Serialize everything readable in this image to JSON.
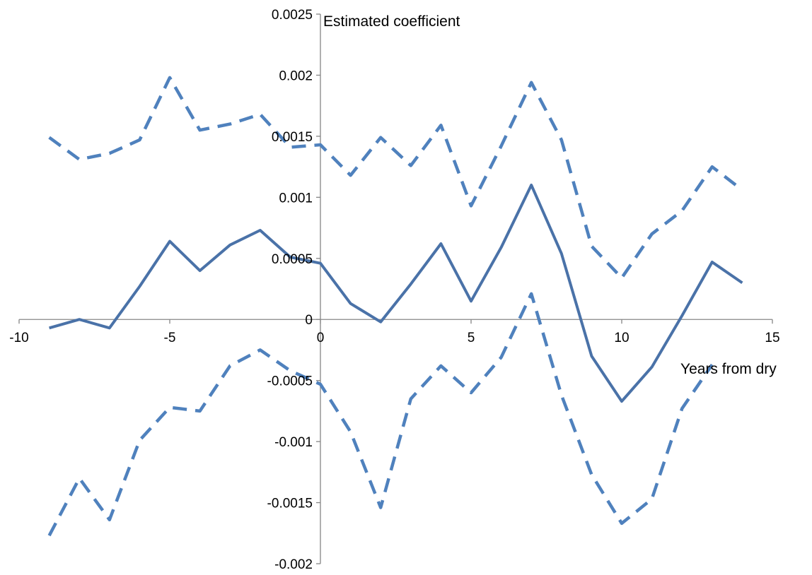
{
  "chart_data": {
    "type": "line",
    "title": "",
    "xlabel": "Years from dry",
    "ylabel": "Estimated coefficient",
    "xlim": [
      -10,
      15
    ],
    "ylim": [
      -0.002,
      0.0025
    ],
    "x_ticks": [
      "-10",
      "-5",
      "0",
      "5",
      "10",
      "15"
    ],
    "x_tick_values": [
      -10,
      -5,
      0,
      5,
      10,
      15
    ],
    "y_ticks": [
      "0.0025",
      "0.002",
      "0.0015",
      "0.001",
      "0.0005",
      "0",
      "-0.0005",
      "-0.001",
      "-0.0015",
      "-0.002"
    ],
    "y_tick_values": [
      0.0025,
      0.002,
      0.0015,
      0.001,
      0.0005,
      0,
      -0.0005,
      -0.001,
      -0.0015,
      -0.002
    ],
    "grid": false,
    "legend": "none",
    "x": [
      -9,
      -8,
      -7,
      -6,
      -5,
      -4,
      -3,
      -2,
      -1,
      0,
      1,
      2,
      3,
      4,
      5,
      6,
      7,
      8,
      9,
      10,
      11,
      12,
      13,
      14
    ],
    "series": [
      {
        "style": "dashed",
        "color": "#4f81bd",
        "values": [
          0.00149,
          0.00131,
          0.00136,
          0.00147,
          0.00198,
          0.00155,
          0.0016,
          0.00168,
          0.00141,
          0.00143,
          0.00118,
          0.00149,
          0.00126,
          0.00159,
          0.00093,
          0.00142,
          0.00194,
          0.00147,
          0.0006,
          0.00034,
          0.0007,
          0.00089,
          0.00125,
          0.00106
        ]
      },
      {
        "style": "solid",
        "color": "#4a72a8",
        "values": [
          -7e-05,
          0.0,
          -7e-05,
          0.00027,
          0.00064,
          0.0004,
          0.00061,
          0.00073,
          0.00051,
          0.00046,
          0.00013,
          -2e-05,
          0.00029,
          0.00062,
          0.00015,
          0.00059,
          0.0011,
          0.00054,
          -0.0003,
          -0.00067,
          -0.00039,
          3e-05,
          0.00047,
          0.0003
        ]
      },
      {
        "style": "dashed",
        "color": "#4f81bd",
        "values": [
          -0.00177,
          -0.0013,
          -0.00164,
          -0.00099,
          -0.00072,
          -0.00075,
          -0.00038,
          -0.00025,
          -0.00042,
          -0.00053,
          -0.00092,
          -0.00154,
          -0.00065,
          -0.00038,
          -0.0006,
          -0.00031,
          0.00021,
          -0.00062,
          -0.00127,
          -0.00167,
          -0.00147,
          -0.00073,
          -0.00037,
          null
        ]
      }
    ]
  }
}
